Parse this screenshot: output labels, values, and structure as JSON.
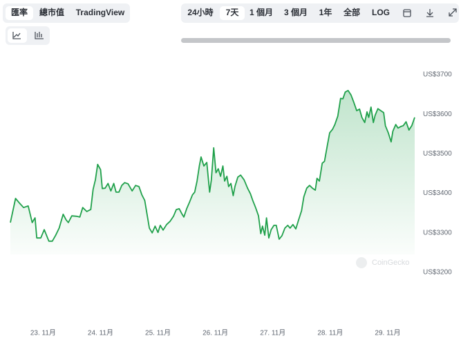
{
  "ui": {
    "view_tabs": [
      "匯率",
      "總市值",
      "TradingView"
    ],
    "range_tabs": [
      "24小時",
      "7天",
      "1 個月",
      "3 個月",
      "1年",
      "全部",
      "LOG"
    ],
    "watermark": "CoinGecko"
  },
  "chart_data": {
    "type": "line",
    "color": "#1fa04a",
    "grid": false,
    "xlim": [
      22.43,
      29.47
    ],
    "ylim": [
      3200,
      3700
    ],
    "xticks": [
      {
        "value": 23,
        "label": "23. 11月"
      },
      {
        "value": 24,
        "label": "24. 11月"
      },
      {
        "value": 25,
        "label": "25. 11月"
      },
      {
        "value": 26,
        "label": "26. 11月"
      },
      {
        "value": 27,
        "label": "27. 11月"
      },
      {
        "value": 28,
        "label": "28. 11月"
      },
      {
        "value": 29,
        "label": "29. 11月"
      }
    ],
    "yticks": [
      {
        "value": 3200,
        "label": "US$3200"
      },
      {
        "value": 3300,
        "label": "US$3300"
      },
      {
        "value": 3400,
        "label": "US$3400"
      },
      {
        "value": 3500,
        "label": "US$3500"
      },
      {
        "value": 3600,
        "label": "US$3600"
      },
      {
        "value": 3700,
        "label": "US$3700"
      }
    ],
    "x": [
      22.43,
      22.52,
      22.59,
      22.66,
      22.74,
      22.81,
      22.86,
      22.89,
      22.96,
      23.02,
      23.1,
      23.16,
      23.22,
      23.28,
      23.35,
      23.4,
      23.44,
      23.5,
      23.58,
      23.64,
      23.69,
      23.76,
      23.83,
      23.87,
      23.91,
      23.95,
      24.0,
      24.03,
      24.08,
      24.13,
      24.18,
      24.23,
      24.27,
      24.32,
      24.37,
      24.42,
      24.48,
      24.55,
      24.61,
      24.67,
      24.72,
      24.77,
      24.8,
      24.85,
      24.9,
      24.95,
      25.0,
      25.04,
      25.09,
      25.15,
      25.21,
      25.27,
      25.32,
      25.37,
      25.42,
      25.45,
      25.5,
      25.55,
      25.6,
      25.64,
      25.68,
      25.72,
      25.75,
      25.8,
      25.85,
      25.9,
      25.93,
      25.97,
      26.01,
      26.05,
      26.09,
      26.13,
      26.16,
      26.2,
      26.23,
      26.27,
      26.31,
      26.34,
      26.39,
      26.44,
      26.5,
      26.56,
      26.61,
      26.65,
      26.7,
      26.75,
      26.79,
      26.82,
      26.86,
      26.89,
      26.93,
      26.97,
      27.02,
      27.06,
      27.11,
      27.16,
      27.21,
      27.26,
      27.3,
      27.35,
      27.4,
      27.45,
      27.5,
      27.54,
      27.59,
      27.64,
      27.69,
      27.74,
      27.77,
      27.81,
      27.86,
      27.9,
      27.95,
      27.99,
      28.04,
      28.08,
      28.13,
      28.18,
      28.22,
      28.26,
      28.31,
      28.36,
      28.41,
      28.46,
      28.51,
      28.55,
      28.6,
      28.64,
      28.67,
      28.71,
      28.75,
      28.78,
      28.83,
      28.88,
      28.93,
      28.96,
      29.01,
      29.06,
      29.09,
      29.14,
      29.18,
      29.23,
      29.27,
      29.32,
      29.37,
      29.42,
      29.47
    ],
    "values": [
      3326,
      3387,
      3375,
      3364,
      3368,
      3326,
      3338,
      3287,
      3287,
      3308,
      3279,
      3279,
      3294,
      3312,
      3347,
      3333,
      3326,
      3343,
      3342,
      3340,
      3364,
      3354,
      3359,
      3410,
      3434,
      3473,
      3460,
      3412,
      3413,
      3425,
      3406,
      3425,
      3403,
      3403,
      3420,
      3427,
      3424,
      3406,
      3420,
      3417,
      3396,
      3382,
      3356,
      3312,
      3300,
      3317,
      3301,
      3319,
      3307,
      3321,
      3329,
      3342,
      3359,
      3361,
      3347,
      3340,
      3361,
      3378,
      3396,
      3403,
      3431,
      3469,
      3492,
      3469,
      3478,
      3403,
      3434,
      3515,
      3452,
      3462,
      3443,
      3469,
      3431,
      3443,
      3417,
      3425,
      3394,
      3417,
      3441,
      3446,
      3434,
      3413,
      3399,
      3382,
      3364,
      3343,
      3298,
      3317,
      3294,
      3338,
      3287,
      3308,
      3319,
      3319,
      3284,
      3293,
      3312,
      3319,
      3312,
      3321,
      3310,
      3333,
      3356,
      3391,
      3413,
      3420,
      3413,
      3408,
      3438,
      3431,
      3476,
      3481,
      3522,
      3553,
      3562,
      3574,
      3595,
      3640,
      3639,
      3656,
      3660,
      3649,
      3630,
      3609,
      3613,
      3592,
      3579,
      3606,
      3592,
      3618,
      3579,
      3597,
      3614,
      3609,
      3604,
      3571,
      3553,
      3530,
      3557,
      3574,
      3565,
      3569,
      3571,
      3581,
      3560,
      3571,
      3592
    ]
  }
}
